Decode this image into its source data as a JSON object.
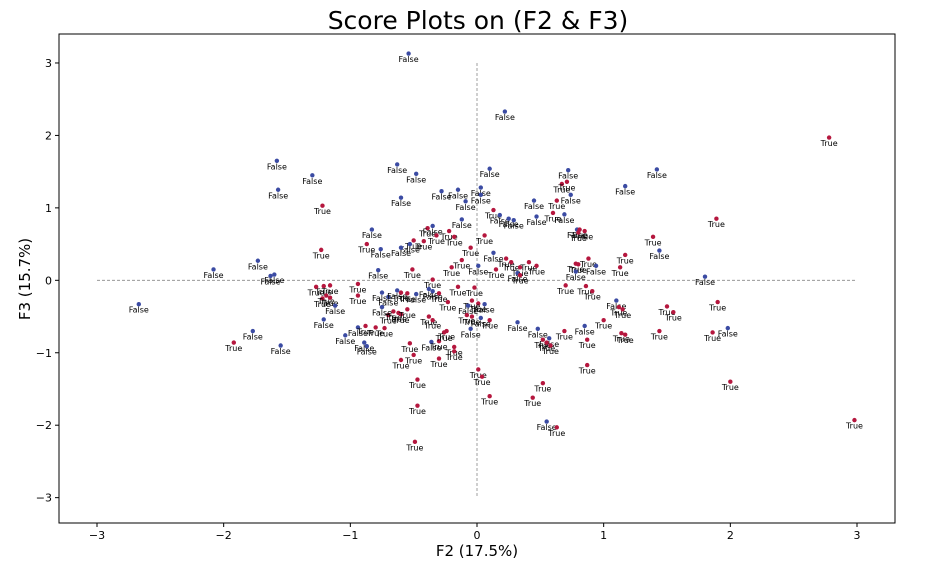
{
  "chart_data": {
    "type": "scatter",
    "title": "Score Plots on (F2 & F3)",
    "xlabel": "F2 (17.5%)",
    "ylabel": "F3 (15.7%)",
    "xlim": [
      -3.3,
      3.3
    ],
    "ylim": [
      -3.35,
      3.4
    ],
    "xticks": [
      -3,
      -2,
      -1,
      0,
      1,
      2,
      3
    ],
    "yticks": [
      -3,
      -2,
      -1,
      0,
      1,
      2,
      3
    ],
    "reference_lines": {
      "horizontal_y": 0,
      "vertical_x": 0,
      "x_extent": [
        -3,
        3
      ],
      "y_extent": [
        -3,
        3
      ]
    },
    "grid": false,
    "colors": {
      "True": "#b5173e",
      "False": "#3b4ba3"
    },
    "points": [
      {
        "x": -0.54,
        "y": 3.13,
        "label": "False"
      },
      {
        "x": 0.22,
        "y": 2.33,
        "label": "False"
      },
      {
        "x": 2.78,
        "y": 1.97,
        "label": "True"
      },
      {
        "x": -1.58,
        "y": 1.65,
        "label": "False"
      },
      {
        "x": -1.3,
        "y": 1.45,
        "label": "False"
      },
      {
        "x": -1.57,
        "y": 1.25,
        "label": "False"
      },
      {
        "x": -1.22,
        "y": 1.03,
        "label": "True"
      },
      {
        "x": -0.63,
        "y": 1.6,
        "label": "False"
      },
      {
        "x": -0.48,
        "y": 1.47,
        "label": "False"
      },
      {
        "x": -0.6,
        "y": 1.14,
        "label": "False"
      },
      {
        "x": -0.28,
        "y": 1.23,
        "label": "False"
      },
      {
        "x": -0.15,
        "y": 1.25,
        "label": "False"
      },
      {
        "x": -0.09,
        "y": 1.09,
        "label": "False"
      },
      {
        "x": 0.03,
        "y": 1.28,
        "label": "False"
      },
      {
        "x": 0.03,
        "y": 1.18,
        "label": "False"
      },
      {
        "x": 0.1,
        "y": 1.54,
        "label": "False"
      },
      {
        "x": 0.13,
        "y": 0.97,
        "label": "True"
      },
      {
        "x": 0.18,
        "y": 0.9,
        "label": "False"
      },
      {
        "x": 0.25,
        "y": 0.85,
        "label": "False"
      },
      {
        "x": 0.29,
        "y": 0.83,
        "label": "False"
      },
      {
        "x": 0.45,
        "y": 1.1,
        "label": "False"
      },
      {
        "x": 0.47,
        "y": 0.88,
        "label": "False"
      },
      {
        "x": 0.67,
        "y": 1.33,
        "label": "True"
      },
      {
        "x": 0.71,
        "y": 1.36,
        "label": "True"
      },
      {
        "x": 0.72,
        "y": 1.52,
        "label": "False"
      },
      {
        "x": 0.74,
        "y": 1.18,
        "label": "False"
      },
      {
        "x": 0.63,
        "y": 1.1,
        "label": "True"
      },
      {
        "x": 0.69,
        "y": 0.91,
        "label": "False"
      },
      {
        "x": 0.6,
        "y": 0.93,
        "label": "True"
      },
      {
        "x": 1.17,
        "y": 1.3,
        "label": "False"
      },
      {
        "x": 1.42,
        "y": 1.53,
        "label": "False"
      },
      {
        "x": 1.89,
        "y": 0.85,
        "label": "True"
      },
      {
        "x": -0.12,
        "y": 0.84,
        "label": "False"
      },
      {
        "x": -0.83,
        "y": 0.7,
        "label": "False"
      },
      {
        "x": -0.39,
        "y": 0.72,
        "label": "True"
      },
      {
        "x": -0.35,
        "y": 0.75,
        "label": "False"
      },
      {
        "x": -0.32,
        "y": 0.62,
        "label": "True"
      },
      {
        "x": -0.42,
        "y": 0.54,
        "label": "True"
      },
      {
        "x": -0.5,
        "y": 0.55,
        "label": "True"
      },
      {
        "x": -0.53,
        "y": 0.5,
        "label": "False"
      },
      {
        "x": -0.6,
        "y": 0.45,
        "label": "False"
      },
      {
        "x": -0.22,
        "y": 0.68,
        "label": "True"
      },
      {
        "x": -0.18,
        "y": 0.6,
        "label": "True"
      },
      {
        "x": -0.05,
        "y": 0.45,
        "label": "True"
      },
      {
        "x": 0.06,
        "y": 0.62,
        "label": "True"
      },
      {
        "x": 0.13,
        "y": 0.38,
        "label": "False"
      },
      {
        "x": -0.2,
        "y": 0.18,
        "label": "True"
      },
      {
        "x": -0.12,
        "y": 0.28,
        "label": "True"
      },
      {
        "x": 0.01,
        "y": 0.2,
        "label": "False"
      },
      {
        "x": 0.15,
        "y": 0.15,
        "label": "True"
      },
      {
        "x": 0.23,
        "y": 0.3,
        "label": "True"
      },
      {
        "x": 0.27,
        "y": 0.25,
        "label": "True"
      },
      {
        "x": 0.34,
        "y": 0.18,
        "label": "True"
      },
      {
        "x": 0.41,
        "y": 0.25,
        "label": "True"
      },
      {
        "x": 0.47,
        "y": 0.2,
        "label": "True"
      },
      {
        "x": 0.32,
        "y": 0.1,
        "label": "False"
      },
      {
        "x": 0.34,
        "y": 0.07,
        "label": "True"
      },
      {
        "x": -0.87,
        "y": 0.5,
        "label": "True"
      },
      {
        "x": -0.76,
        "y": 0.43,
        "label": "False"
      },
      {
        "x": -1.23,
        "y": 0.42,
        "label": "True"
      },
      {
        "x": -1.73,
        "y": 0.27,
        "label": "False"
      },
      {
        "x": -2.08,
        "y": 0.15,
        "label": "False"
      },
      {
        "x": -1.63,
        "y": 0.06,
        "label": "False"
      },
      {
        "x": -1.6,
        "y": 0.08,
        "label": "False"
      },
      {
        "x": -0.78,
        "y": 0.14,
        "label": "False"
      },
      {
        "x": -0.51,
        "y": 0.15,
        "label": "True"
      },
      {
        "x": -0.35,
        "y": 0.01,
        "label": "True"
      },
      {
        "x": -2.67,
        "y": -0.33,
        "label": "False"
      },
      {
        "x": 0.85,
        "y": 0.68,
        "label": "True"
      },
      {
        "x": 0.79,
        "y": 0.7,
        "label": "False"
      },
      {
        "x": 0.81,
        "y": 0.7,
        "label": "True"
      },
      {
        "x": 0.8,
        "y": 0.66,
        "label": "True"
      },
      {
        "x": 0.88,
        "y": 0.3,
        "label": "True"
      },
      {
        "x": 0.78,
        "y": 0.23,
        "label": "True"
      },
      {
        "x": 0.8,
        "y": 0.22,
        "label": "True"
      },
      {
        "x": 0.94,
        "y": 0.2,
        "label": "False"
      },
      {
        "x": 0.78,
        "y": 0.12,
        "label": "False"
      },
      {
        "x": 1.13,
        "y": 0.18,
        "label": "True"
      },
      {
        "x": 1.17,
        "y": 0.35,
        "label": "True"
      },
      {
        "x": 1.39,
        "y": 0.6,
        "label": "True"
      },
      {
        "x": 1.44,
        "y": 0.41,
        "label": "False"
      },
      {
        "x": 1.8,
        "y": 0.05,
        "label": "False"
      },
      {
        "x": 0.7,
        "y": -0.07,
        "label": "True"
      },
      {
        "x": 0.86,
        "y": -0.08,
        "label": "True"
      },
      {
        "x": 0.91,
        "y": -0.15,
        "label": "True"
      },
      {
        "x": 1.1,
        "y": -0.28,
        "label": "False"
      },
      {
        "x": 1.12,
        "y": -0.37,
        "label": "True"
      },
      {
        "x": 1.0,
        "y": -0.55,
        "label": "True"
      },
      {
        "x": 1.15,
        "y": -0.4,
        "label": "True"
      },
      {
        "x": 1.5,
        "y": -0.36,
        "label": "True"
      },
      {
        "x": 1.55,
        "y": -0.44,
        "label": "True"
      },
      {
        "x": 1.9,
        "y": -0.3,
        "label": "True"
      },
      {
        "x": 1.14,
        "y": -0.73,
        "label": "True"
      },
      {
        "x": 1.17,
        "y": -0.75,
        "label": "True"
      },
      {
        "x": 1.44,
        "y": -0.7,
        "label": "True"
      },
      {
        "x": 1.86,
        "y": -0.72,
        "label": "True"
      },
      {
        "x": 1.98,
        "y": -0.66,
        "label": "False"
      },
      {
        "x": 0.69,
        "y": -0.7,
        "label": "True"
      },
      {
        "x": 0.85,
        "y": -0.63,
        "label": "False"
      },
      {
        "x": 0.87,
        "y": -0.82,
        "label": "True"
      },
      {
        "x": 0.87,
        "y": -1.17,
        "label": "True"
      },
      {
        "x": 2.0,
        "y": -1.4,
        "label": "True"
      },
      {
        "x": 2.98,
        "y": -1.93,
        "label": "True"
      },
      {
        "x": -1.21,
        "y": -0.08,
        "label": "True"
      },
      {
        "x": -1.16,
        "y": -0.07,
        "label": "True"
      },
      {
        "x": -1.22,
        "y": -0.25,
        "label": "True"
      },
      {
        "x": -1.19,
        "y": -0.21,
        "label": "True"
      },
      {
        "x": -1.16,
        "y": -0.24,
        "label": "True"
      },
      {
        "x": -1.12,
        "y": -0.35,
        "label": "False"
      },
      {
        "x": -1.21,
        "y": -0.54,
        "label": "False"
      },
      {
        "x": -0.94,
        "y": -0.05,
        "label": "True"
      },
      {
        "x": -0.94,
        "y": -0.21,
        "label": "True"
      },
      {
        "x": -0.75,
        "y": -0.17,
        "label": "False"
      },
      {
        "x": -0.7,
        "y": -0.23,
        "label": "False"
      },
      {
        "x": -0.63,
        "y": -0.14,
        "label": "False"
      },
      {
        "x": -0.6,
        "y": -0.17,
        "label": "True"
      },
      {
        "x": -0.55,
        "y": -0.18,
        "label": "True"
      },
      {
        "x": -0.48,
        "y": -0.19,
        "label": "False"
      },
      {
        "x": -0.38,
        "y": -0.12,
        "label": "False"
      },
      {
        "x": -0.3,
        "y": -0.18,
        "label": "True"
      },
      {
        "x": -0.35,
        "y": -0.15,
        "label": "False"
      },
      {
        "x": -0.15,
        "y": -0.09,
        "label": "True"
      },
      {
        "x": -0.02,
        "y": -0.1,
        "label": "True"
      },
      {
        "x": 0.06,
        "y": -0.33,
        "label": "False"
      },
      {
        "x": 0.01,
        "y": -0.32,
        "label": "True"
      },
      {
        "x": -0.04,
        "y": -0.28,
        "label": "True"
      },
      {
        "x": -0.07,
        "y": -0.35,
        "label": "False"
      },
      {
        "x": -0.23,
        "y": -0.3,
        "label": "True"
      },
      {
        "x": -0.08,
        "y": -0.48,
        "label": "True"
      },
      {
        "x": -0.04,
        "y": -0.5,
        "label": "True"
      },
      {
        "x": 0.03,
        "y": -0.52,
        "label": "False"
      },
      {
        "x": 0.1,
        "y": -0.55,
        "label": "True"
      },
      {
        "x": -0.7,
        "y": -0.48,
        "label": "True"
      },
      {
        "x": -0.75,
        "y": -0.37,
        "label": "False"
      },
      {
        "x": -0.66,
        "y": -0.43,
        "label": "True"
      },
      {
        "x": -0.62,
        "y": -0.45,
        "label": "True"
      },
      {
        "x": -0.6,
        "y": -0.47,
        "label": "True"
      },
      {
        "x": -0.55,
        "y": -0.4,
        "label": "True"
      },
      {
        "x": -0.38,
        "y": -0.5,
        "label": "True"
      },
      {
        "x": -0.35,
        "y": -0.55,
        "label": "True"
      },
      {
        "x": -1.04,
        "y": -0.76,
        "label": "False"
      },
      {
        "x": -0.94,
        "y": -0.65,
        "label": "False"
      },
      {
        "x": -0.88,
        "y": -0.63,
        "label": "True"
      },
      {
        "x": -0.8,
        "y": -0.65,
        "label": "True"
      },
      {
        "x": -0.73,
        "y": -0.66,
        "label": "True"
      },
      {
        "x": -0.89,
        "y": -0.86,
        "label": "False"
      },
      {
        "x": -0.87,
        "y": -0.91,
        "label": "False"
      },
      {
        "x": -0.53,
        "y": -0.87,
        "label": "True"
      },
      {
        "x": -0.36,
        "y": -0.85,
        "label": "False"
      },
      {
        "x": -0.3,
        "y": -0.84,
        "label": "True"
      },
      {
        "x": -0.26,
        "y": -0.72,
        "label": "True"
      },
      {
        "x": -0.24,
        "y": -0.7,
        "label": "True"
      },
      {
        "x": -0.18,
        "y": -0.92,
        "label": "True"
      },
      {
        "x": -0.18,
        "y": -0.98,
        "label": "True"
      },
      {
        "x": -0.6,
        "y": -1.1,
        "label": "True"
      },
      {
        "x": -0.5,
        "y": -1.03,
        "label": "True"
      },
      {
        "x": -0.3,
        "y": -1.08,
        "label": "True"
      },
      {
        "x": -0.05,
        "y": -0.67,
        "label": "False"
      },
      {
        "x": -0.47,
        "y": -1.37,
        "label": "True"
      },
      {
        "x": -0.47,
        "y": -1.73,
        "label": "True"
      },
      {
        "x": -0.49,
        "y": -2.23,
        "label": "True"
      },
      {
        "x": 0.01,
        "y": -1.23,
        "label": "True"
      },
      {
        "x": 0.04,
        "y": -1.33,
        "label": "True"
      },
      {
        "x": 0.1,
        "y": -1.6,
        "label": "True"
      },
      {
        "x": 0.44,
        "y": -1.62,
        "label": "True"
      },
      {
        "x": 0.52,
        "y": -1.42,
        "label": "True"
      },
      {
        "x": 0.55,
        "y": -1.95,
        "label": "False"
      },
      {
        "x": 0.63,
        "y": -2.03,
        "label": "True"
      },
      {
        "x": 0.32,
        "y": -0.58,
        "label": "False"
      },
      {
        "x": 0.48,
        "y": -0.67,
        "label": "False"
      },
      {
        "x": 0.57,
        "y": -0.8,
        "label": "False"
      },
      {
        "x": 0.52,
        "y": -0.82,
        "label": "True"
      },
      {
        "x": 0.55,
        "y": -0.86,
        "label": "True"
      },
      {
        "x": 0.58,
        "y": -0.9,
        "label": "True"
      },
      {
        "x": -1.27,
        "y": -0.09,
        "label": "True"
      },
      {
        "x": -1.77,
        "y": -0.7,
        "label": "False"
      },
      {
        "x": -1.92,
        "y": -0.86,
        "label": "True"
      },
      {
        "x": -1.55,
        "y": -0.9,
        "label": "False"
      }
    ]
  }
}
